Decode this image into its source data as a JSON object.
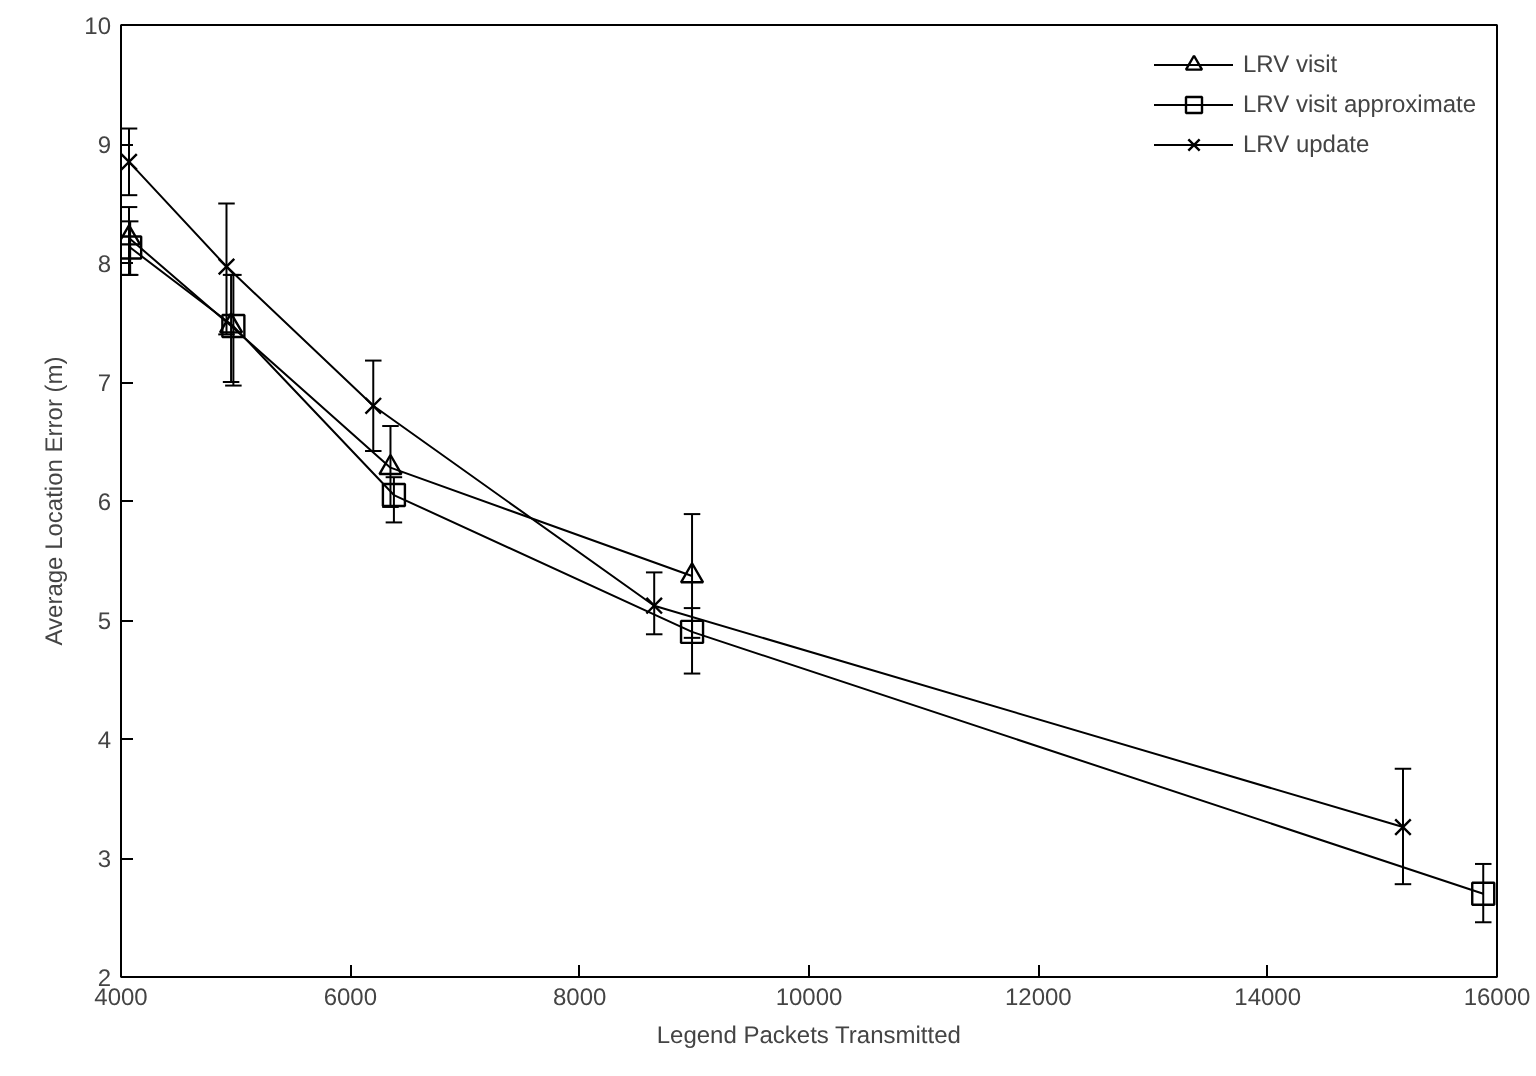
{
  "chart_data": {
    "type": "line",
    "xlabel": "Legend Packets Transmitted",
    "ylabel": "Average Location Error (m)",
    "xlim": [
      4000,
      16000
    ],
    "xticks": [
      4000,
      6000,
      8000,
      10000,
      12000,
      14000,
      16000
    ],
    "ylim": [
      2,
      10
    ],
    "yticks": [
      2,
      3,
      4,
      5,
      6,
      7,
      8,
      9,
      10
    ],
    "grid": false,
    "legend": "top right",
    "series": [
      {
        "name": "LRV visit",
        "color": "#000000",
        "marker": "triangle",
        "x": [
          4070,
          4960,
          6350,
          8980
        ],
        "values": [
          8.21,
          7.47,
          6.28,
          5.37
        ],
        "errors": [
          [
            7.9,
            8.47
          ],
          [
            7.0,
            7.9
          ],
          [
            5.95,
            6.63
          ],
          [
            4.85,
            5.89
          ]
        ]
      },
      {
        "name": "LRV visit approximate",
        "color": "#000000",
        "marker": "square",
        "x": [
          4080,
          4980,
          6380,
          8980,
          15880
        ],
        "values": [
          8.13,
          7.47,
          6.05,
          4.9,
          2.7
        ],
        "errors": [
          [
            7.9,
            8.35
          ],
          [
            6.97,
            7.9
          ],
          [
            5.82,
            6.2
          ],
          [
            4.55,
            5.1
          ],
          [
            2.46,
            2.95
          ]
        ]
      },
      {
        "name": "LRV update",
        "color": "#000000",
        "marker": "cross",
        "x": [
          4070,
          4920,
          6200,
          8650,
          15180
        ],
        "values": [
          8.85,
          7.97,
          6.8,
          5.12,
          3.26
        ],
        "errors": [
          [
            8.57,
            9.13
          ],
          [
            7.4,
            8.5
          ],
          [
            6.42,
            7.18
          ],
          [
            4.88,
            5.4
          ],
          [
            2.78,
            3.75
          ]
        ]
      }
    ]
  }
}
